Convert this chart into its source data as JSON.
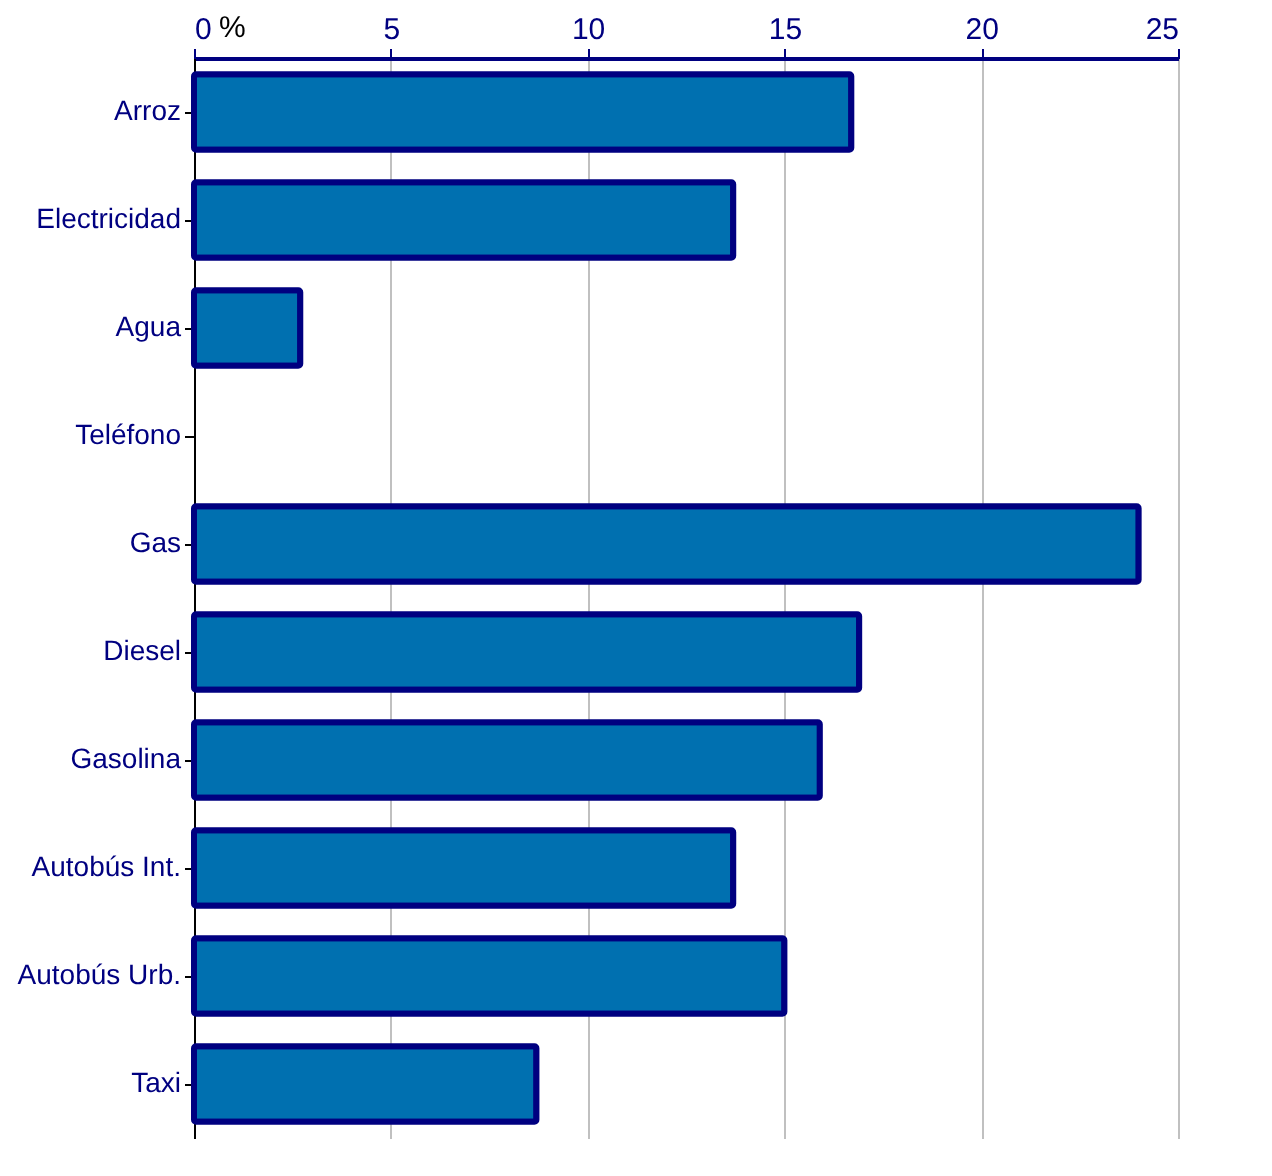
{
  "chart_data": {
    "type": "bar",
    "orientation": "horizontal",
    "xlabel": "%",
    "categories": [
      "Arroz",
      "Electricidad",
      "Agua",
      "Teléfono",
      "Gas",
      "Diesel",
      "Gasolina",
      "Autobús Int.",
      "Autobús Urb.",
      "Taxi"
    ],
    "values": [
      16.7,
      13.7,
      2.7,
      null,
      24.0,
      16.9,
      15.9,
      13.7,
      15.0,
      8.7
    ],
    "color": "#0070b0",
    "xlim": [
      0,
      25
    ],
    "xticks": [
      0,
      5,
      10,
      15,
      20,
      25
    ],
    "grid": "x"
  }
}
